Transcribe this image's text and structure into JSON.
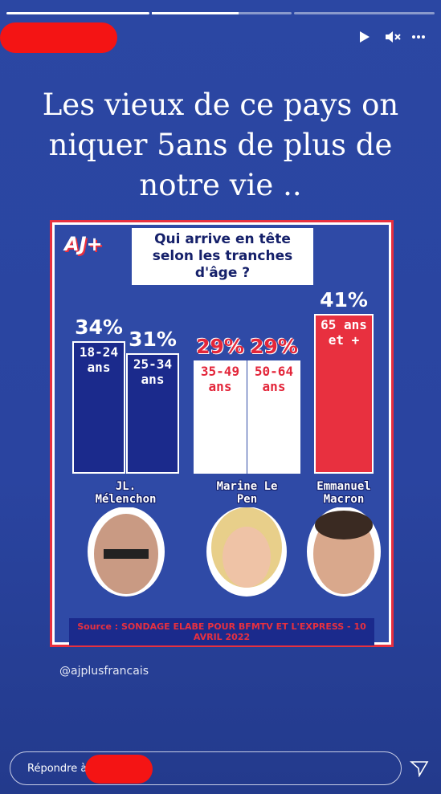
{
  "story": {
    "caption": "Les vieux de ce pays on niquer 5ans de plus de notre vie ..",
    "handle": "@ajplusfrancais",
    "reply_placeholder": "Répondre à"
  },
  "chart_data": {
    "type": "bar",
    "logo": "AJ+",
    "title": "Qui arrive en tête selon les tranches d'âge ?",
    "categories": [
      "18-24 ans",
      "25-34 ans",
      "35-49 ans",
      "50-64 ans",
      "65 ans et +"
    ],
    "series": [
      {
        "name": "JL. Mélenchon",
        "color": "#1b2a8c",
        "values": [
          34,
          31,
          null,
          null,
          null
        ],
        "value_labels": [
          "34%",
          "31%",
          null,
          null,
          null
        ]
      },
      {
        "name": "Marine Le Pen",
        "color": "#ffffff",
        "values": [
          null,
          null,
          29,
          29,
          null
        ],
        "value_labels": [
          null,
          null,
          "29%",
          "29%",
          null
        ]
      },
      {
        "name": "Emmanuel Macron",
        "color": "#e8303f",
        "values": [
          null,
          null,
          null,
          null,
          41
        ],
        "value_labels": [
          null,
          null,
          null,
          null,
          "41%"
        ]
      }
    ],
    "source": "Source : SONDAGE ELABE POUR BFMTV ET L'EXPRESS - 10 AVRIL 2022"
  }
}
